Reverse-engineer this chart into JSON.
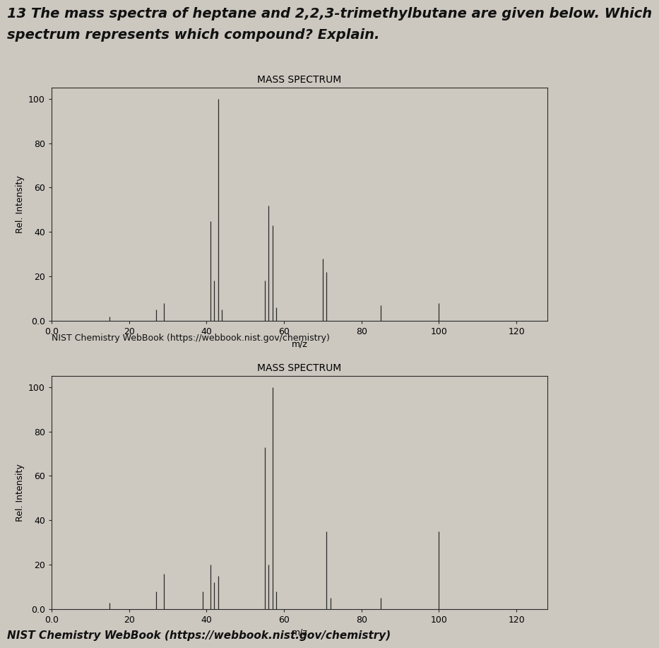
{
  "title_line1": "13 The mass spectra of heptane and 2,2,3-trimethylbutane are given below. Which",
  "title_line2": "spectrum represents which compound? Explain.",
  "spectrum1": {
    "title": "MASS SPECTRUM",
    "ylabel": "Rel. Intensity",
    "xlabel": "m/z",
    "source": "NIST Chemistry WebBook (https://webbook.nist.gov/chemistry)",
    "peaks": [
      [
        15,
        2
      ],
      [
        27,
        5
      ],
      [
        29,
        8
      ],
      [
        41,
        45
      ],
      [
        42,
        18
      ],
      [
        43,
        100
      ],
      [
        44,
        5
      ],
      [
        55,
        18
      ],
      [
        56,
        52
      ],
      [
        57,
        43
      ],
      [
        58,
        6
      ],
      [
        70,
        28
      ],
      [
        71,
        22
      ],
      [
        85,
        7
      ],
      [
        100,
        8
      ]
    ],
    "xlim": [
      0.0,
      128
    ],
    "ylim": [
      0.0,
      105
    ],
    "xticks": [
      0.0,
      20,
      40,
      60,
      80,
      100,
      120
    ],
    "yticks": [
      0.0,
      20,
      40,
      60,
      80,
      100
    ],
    "xticklabels": [
      "0.0",
      "20",
      "40",
      "60",
      "80",
      "100",
      "120"
    ],
    "yticklabels": [
      "0.0",
      "20",
      "40",
      "60",
      "80",
      "100"
    ]
  },
  "spectrum2": {
    "title": "MASS SPECTRUM",
    "ylabel": "Rel. Intensity",
    "xlabel": "m/z",
    "source": "NIST Chemistry WebBook (https://webbook.nist.gov/chemistry)",
    "peaks": [
      [
        15,
        3
      ],
      [
        27,
        8
      ],
      [
        29,
        16
      ],
      [
        39,
        8
      ],
      [
        41,
        20
      ],
      [
        42,
        12
      ],
      [
        43,
        15
      ],
      [
        55,
        73
      ],
      [
        56,
        20
      ],
      [
        57,
        100
      ],
      [
        58,
        8
      ],
      [
        71,
        35
      ],
      [
        72,
        5
      ],
      [
        85,
        5
      ],
      [
        100,
        35
      ]
    ],
    "xlim": [
      0.0,
      128
    ],
    "ylim": [
      0.0,
      105
    ],
    "xticks": [
      0.0,
      20,
      40,
      60,
      80,
      100,
      120
    ],
    "yticks": [
      0.0,
      20,
      40,
      60,
      80,
      100
    ],
    "xticklabels": [
      "0.0",
      "20",
      "40",
      "60",
      "80",
      "100",
      "120"
    ],
    "yticklabels": [
      "0.0",
      "20",
      "40",
      "60",
      "80",
      "100"
    ]
  },
  "page_bg": "#ccc8c0",
  "paper_bg": "#d8d3ca",
  "plot_bg": "#cec9c0",
  "line_color": "#2a2a2a",
  "title_fontsize": 14,
  "label_fontsize": 9,
  "tick_fontsize": 9,
  "source_fontsize": 9
}
